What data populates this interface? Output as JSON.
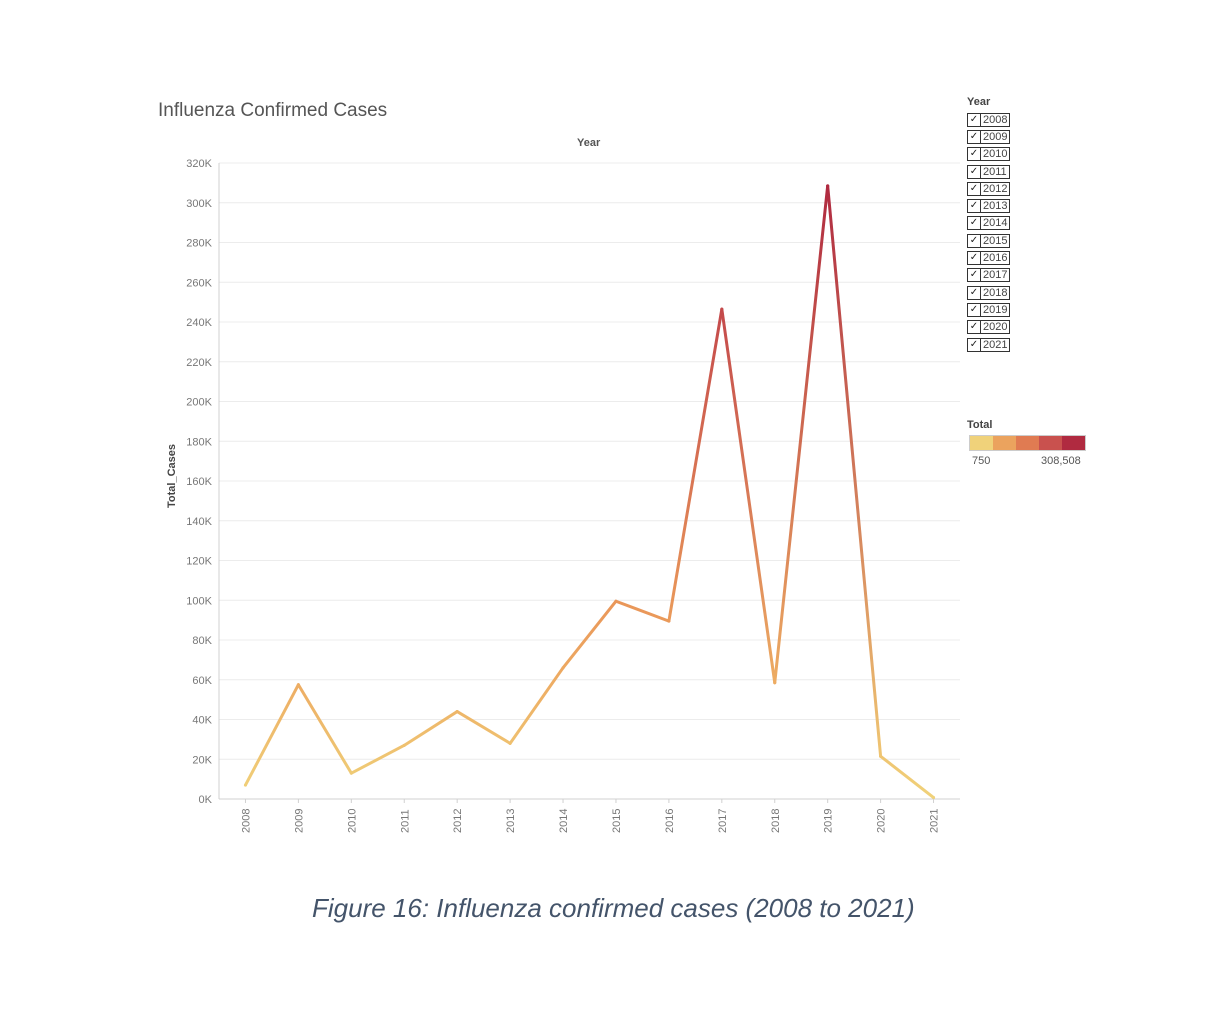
{
  "header": {
    "title": "Influenza Confirmed Cases",
    "x_header": "Year"
  },
  "caption": "Figure 16:  Influenza confirmed cases (2008 to 2021)",
  "year_filter": {
    "title": "Year",
    "items": [
      "2008",
      "2009",
      "2010",
      "2011",
      "2012",
      "2013",
      "2014",
      "2015",
      "2016",
      "2017",
      "2018",
      "2019",
      "2020",
      "2021"
    ],
    "check_mark": "✓"
  },
  "color_legend": {
    "title": "Total",
    "min_label": "750",
    "max_label": "308,508",
    "colors": [
      "#f0d27a",
      "#eba35e",
      "#e07b52",
      "#c9514e",
      "#b02a40"
    ]
  },
  "chart_data": {
    "type": "line",
    "title": "Influenza Confirmed Cases",
    "xlabel": "Year",
    "ylabel": "Total_Cases",
    "x": [
      "2008",
      "2009",
      "2010",
      "2011",
      "2012",
      "2013",
      "2014",
      "2015",
      "2016",
      "2017",
      "2018",
      "2019",
      "2020",
      "2021"
    ],
    "series": [
      {
        "values": [
          7000,
          57500,
          13000,
          27000,
          44000,
          28000,
          66000,
          99500,
          89500,
          246500,
          58500,
          308508,
          21500,
          750
        ]
      }
    ],
    "ylim": [
      0,
      320000
    ],
    "yticks": [
      0,
      20000,
      40000,
      60000,
      80000,
      100000,
      120000,
      140000,
      160000,
      180000,
      200000,
      220000,
      240000,
      260000,
      280000,
      300000,
      320000
    ],
    "ytick_labels": [
      "0K",
      "20K",
      "40K",
      "60K",
      "80K",
      "100K",
      "120K",
      "140K",
      "160K",
      "180K",
      "200K",
      "220K",
      "240K",
      "260K",
      "280K",
      "300K",
      "320K"
    ],
    "color_min": 750,
    "color_max": 308508,
    "grid": true,
    "legend": "right"
  }
}
